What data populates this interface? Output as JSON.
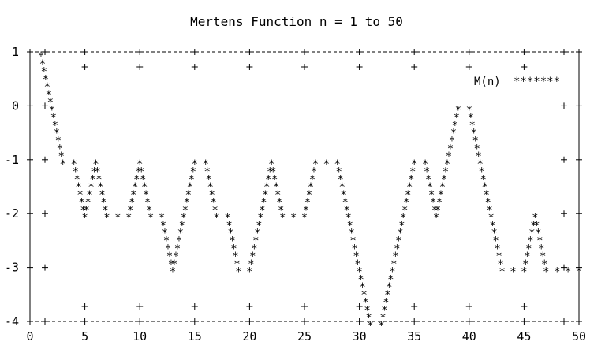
{
  "chart_data": {
    "type": "scatter",
    "title": "Mertens Function n = 1 to 50",
    "xlabel": "",
    "ylabel": "",
    "xlim": [
      0,
      50
    ],
    "ylim": [
      -4,
      1
    ],
    "x_ticks": [
      "0",
      "5",
      "10",
      "15",
      "20",
      "25",
      "30",
      "35",
      "40",
      "45",
      "50"
    ],
    "y_ticks": [
      "1",
      "0",
      "-1",
      "-2",
      "-3",
      "-4"
    ],
    "legend": {
      "position": "top-right",
      "label": "M(n)",
      "marker": "*******"
    },
    "grid": false,
    "series": [
      {
        "name": "M(n)",
        "marker": "*",
        "x": [
          1,
          2,
          3,
          4,
          5,
          6,
          7,
          8,
          9,
          10,
          11,
          12,
          13,
          14,
          15,
          16,
          17,
          18,
          19,
          20,
          21,
          22,
          23,
          24,
          25,
          26,
          27,
          28,
          29,
          30,
          31,
          32,
          33,
          34,
          35,
          36,
          37,
          38,
          39,
          40,
          41,
          42,
          43,
          44,
          45,
          46,
          47,
          48,
          49,
          50
        ],
        "values": [
          1,
          0,
          -1,
          -1,
          -2,
          -1,
          -2,
          -2,
          -2,
          -1,
          -2,
          -2,
          -3,
          -2,
          -1,
          -1,
          -2,
          -2,
          -3,
          -3,
          -2,
          -1,
          -2,
          -2,
          -2,
          -1,
          -1,
          -1,
          -2,
          -3,
          -4,
          -4,
          -3,
          -2,
          -1,
          -1,
          -2,
          -1,
          0,
          0,
          -1,
          -2,
          -3,
          -3,
          -3,
          -2,
          -3,
          -3,
          -3,
          -3
        ]
      }
    ]
  }
}
